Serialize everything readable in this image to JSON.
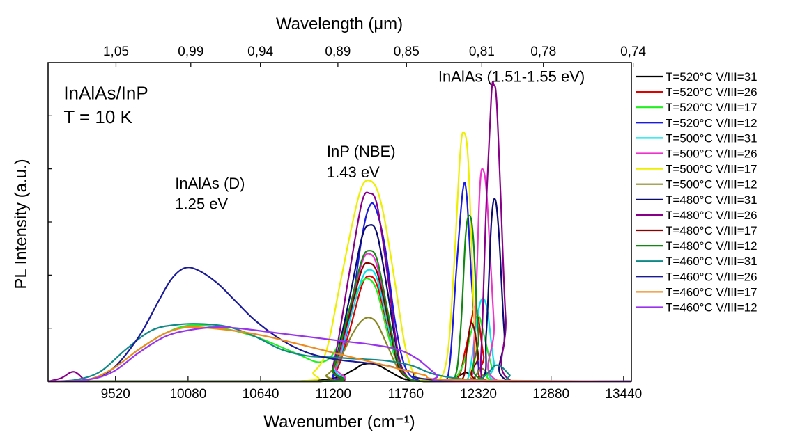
{
  "chart_data": {
    "type": "line",
    "xlabel": "Wavenumber (cm⁻¹)",
    "ylabel": "PL Intensity (a.u.)",
    "top_xlabel": "Wavelength (μm)",
    "xlim": [
      9000,
      13500
    ],
    "ylim": [
      0,
      1
    ],
    "x_ticks": [
      9520,
      10080,
      10640,
      11200,
      11760,
      12320,
      12880,
      13440
    ],
    "top_x_ticks": [
      {
        "label": "1,05",
        "wavenumber": 9524
      },
      {
        "label": "0,99",
        "wavenumber": 10101
      },
      {
        "label": "0,94",
        "wavenumber": 10638
      },
      {
        "label": "0,89",
        "wavenumber": 11236
      },
      {
        "label": "0,85",
        "wavenumber": 11765
      },
      {
        "label": "0,81",
        "wavenumber": 12346
      },
      {
        "label": "0,78",
        "wavenumber": 12821
      },
      {
        "label": "0,74",
        "wavenumber": 13514
      }
    ],
    "y_tick_count": 6,
    "y_tick_labels_shown": false,
    "grid": false,
    "legend_position": "right",
    "annotations": [
      {
        "text": "InAlAs/InP",
        "x": 9120,
        "y": 0.885,
        "size": "big"
      },
      {
        "text": "T = 10 K",
        "x": 9120,
        "y": 0.81,
        "size": "big"
      },
      {
        "text": "InAlAs (D)",
        "x": 9980,
        "y": 0.605
      },
      {
        "text": "1.25 eV",
        "x": 9980,
        "y": 0.54
      },
      {
        "text": "InP (NBE)",
        "x": 11150,
        "y": 0.705
      },
      {
        "text": "1.43 eV",
        "x": 11150,
        "y": 0.64
      },
      {
        "text": "InAlAs (1.51-1.55 eV)",
        "x": 12010,
        "y": 0.94
      }
    ],
    "series": [
      {
        "name": "T=520°C V/III=31",
        "color": "#000000",
        "x": [
          9000,
          10800,
          11200,
          11350,
          11420,
          11480,
          11550,
          11640,
          11720,
          11800,
          12050,
          12180,
          12220,
          12250,
          12280,
          12320,
          13500
        ],
        "y": [
          0.0,
          0.0,
          0.01,
          0.035,
          0.052,
          0.056,
          0.05,
          0.03,
          0.012,
          0.004,
          0.0,
          0.02,
          0.028,
          0.022,
          0.01,
          0.0,
          0.0
        ]
      },
      {
        "name": "T=520°C V/III=26",
        "color": "#e00000",
        "x": [
          9000,
          11100,
          11220,
          11320,
          11420,
          11480,
          11540,
          11620,
          11700,
          11780,
          11900,
          12140,
          12220,
          12280,
          12300,
          12320,
          12360,
          12420,
          13500
        ],
        "y": [
          0.0,
          0.0,
          0.03,
          0.15,
          0.3,
          0.33,
          0.3,
          0.17,
          0.05,
          0.01,
          0.0,
          0.0,
          0.1,
          0.22,
          0.23,
          0.2,
          0.08,
          0.0,
          0.0
        ]
      },
      {
        "name": "T=520°C V/III=17",
        "color": "#22ee22",
        "x": [
          9000,
          9300,
          9500,
          9700,
          9900,
          10080,
          10300,
          10600,
          10900,
          11100,
          11220,
          11320,
          11420,
          11480,
          11540,
          11620,
          11700,
          11780,
          11900,
          12100,
          12200,
          12260,
          12300,
          12330,
          12360,
          12420,
          12480,
          13500
        ],
        "y": [
          0.0,
          0.005,
          0.04,
          0.1,
          0.15,
          0.175,
          0.17,
          0.14,
          0.09,
          0.06,
          0.1,
          0.22,
          0.31,
          0.32,
          0.28,
          0.15,
          0.05,
          0.01,
          0.0,
          0.0,
          0.05,
          0.15,
          0.2,
          0.2,
          0.15,
          0.05,
          0.0,
          0.0
        ]
      },
      {
        "name": "T=520°C V/III=12",
        "color": "#1a1ae0",
        "x": [
          9000,
          11100,
          11200,
          11320,
          11420,
          11480,
          11530,
          11600,
          11680,
          11760,
          11880,
          12050,
          12100,
          12150,
          12200,
          12230,
          12270,
          12320,
          12380,
          13500
        ],
        "y": [
          0.0,
          0.0,
          0.02,
          0.18,
          0.45,
          0.55,
          0.54,
          0.42,
          0.18,
          0.04,
          0.0,
          0.0,
          0.06,
          0.35,
          0.6,
          0.58,
          0.3,
          0.05,
          0.0,
          0.0
        ]
      },
      {
        "name": "T=500°C V/III=31",
        "color": "#00e5ee",
        "x": [
          9000,
          11100,
          11220,
          11320,
          11420,
          11480,
          11540,
          11620,
          11700,
          11780,
          11900,
          12200,
          12260,
          12310,
          12350,
          12390,
          12440,
          12500,
          13500
        ],
        "y": [
          0.0,
          0.0,
          0.04,
          0.18,
          0.32,
          0.35,
          0.32,
          0.18,
          0.05,
          0.01,
          0.0,
          0.0,
          0.05,
          0.2,
          0.26,
          0.22,
          0.06,
          0.0,
          0.0
        ]
      },
      {
        "name": "T=500°C V/III=26",
        "color": "#ee33cc",
        "x": [
          9000,
          11100,
          11220,
          11320,
          11420,
          11480,
          11540,
          11620,
          11700,
          11780,
          11900,
          12240,
          12290,
          12330,
          12360,
          12390,
          12440,
          12480,
          13500
        ],
        "y": [
          0.0,
          0.0,
          0.05,
          0.2,
          0.37,
          0.4,
          0.36,
          0.2,
          0.06,
          0.01,
          0.0,
          0.0,
          0.15,
          0.6,
          0.66,
          0.55,
          0.18,
          0.0,
          0.0
        ]
      },
      {
        "name": "T=500°C V/III=17",
        "color": "#eeee00",
        "x": [
          9000,
          10900,
          11050,
          11150,
          11250,
          11350,
          11420,
          11480,
          11540,
          11600,
          11680,
          11760,
          11850,
          12000,
          12080,
          12130,
          12180,
          12210,
          12240,
          12270,
          12300,
          12360,
          13500
        ],
        "y": [
          0.0,
          0.0,
          0.03,
          0.1,
          0.3,
          0.5,
          0.61,
          0.63,
          0.6,
          0.5,
          0.3,
          0.1,
          0.01,
          0.0,
          0.08,
          0.35,
          0.72,
          0.78,
          0.7,
          0.4,
          0.1,
          0.0,
          0.0
        ]
      },
      {
        "name": "T=500°C V/III=12",
        "color": "#888822",
        "x": [
          9000,
          11000,
          11150,
          11250,
          11350,
          11420,
          11480,
          11540,
          11620,
          11700,
          11780,
          11900,
          12250,
          12300,
          12340,
          12380,
          12430,
          13500
        ],
        "y": [
          0.0,
          0.0,
          0.02,
          0.07,
          0.15,
          0.19,
          0.2,
          0.18,
          0.11,
          0.04,
          0.01,
          0.0,
          0.0,
          0.02,
          0.04,
          0.03,
          0.0,
          0.0
        ]
      },
      {
        "name": "T=480°C V/III=31",
        "color": "#0b0b70",
        "x": [
          9000,
          11100,
          11200,
          11320,
          11420,
          11480,
          11540,
          11620,
          11700,
          11780,
          11900,
          12330,
          12380,
          12420,
          12450,
          12480,
          12520,
          12560,
          13500
        ],
        "y": [
          0.0,
          0.0,
          0.04,
          0.25,
          0.45,
          0.49,
          0.46,
          0.28,
          0.08,
          0.01,
          0.0,
          0.0,
          0.15,
          0.5,
          0.57,
          0.45,
          0.15,
          0.0,
          0.0
        ]
      },
      {
        "name": "T=480°C V/III=26",
        "color": "#880088",
        "x": [
          9000,
          9100,
          9200,
          9300,
          9400,
          11100,
          11200,
          11320,
          11420,
          11480,
          11540,
          11620,
          11700,
          11780,
          11900,
          12300,
          12340,
          12380,
          12420,
          12440,
          12460,
          12490,
          12530,
          12580,
          13500
        ],
        "y": [
          0.0,
          0.01,
          0.03,
          0.0,
          0.0,
          0.0,
          0.05,
          0.33,
          0.56,
          0.59,
          0.55,
          0.33,
          0.09,
          0.01,
          0.0,
          0.0,
          0.08,
          0.55,
          0.9,
          0.93,
          0.88,
          0.6,
          0.2,
          0.0,
          0.0
        ]
      },
      {
        "name": "T=480°C V/III=17",
        "color": "#880000",
        "x": [
          9000,
          11100,
          11200,
          11320,
          11420,
          11480,
          11540,
          11620,
          11700,
          11780,
          11900,
          12180,
          12230,
          12260,
          12290,
          12320,
          12360,
          13500
        ],
        "y": [
          0.0,
          0.0,
          0.04,
          0.2,
          0.35,
          0.37,
          0.34,
          0.2,
          0.05,
          0.01,
          0.0,
          0.0,
          0.1,
          0.18,
          0.16,
          0.08,
          0.0,
          0.0
        ]
      },
      {
        "name": "T=480°C V/III=12",
        "color": "#118811",
        "x": [
          9000,
          11100,
          11200,
          11320,
          11420,
          11480,
          11540,
          11620,
          11700,
          11780,
          11900,
          12120,
          12180,
          12220,
          12250,
          12280,
          12320,
          12380,
          13500
        ],
        "y": [
          0.0,
          0.0,
          0.04,
          0.22,
          0.38,
          0.41,
          0.38,
          0.22,
          0.06,
          0.01,
          0.0,
          0.0,
          0.15,
          0.45,
          0.52,
          0.45,
          0.15,
          0.0,
          0.0
        ]
      },
      {
        "name": "T=460°C V/III=31",
        "color": "#118888",
        "x": [
          9000,
          9200,
          9400,
          9600,
          9800,
          10000,
          10200,
          10400,
          10600,
          10800,
          11000,
          11200,
          11400,
          11600,
          11800,
          12000,
          12300,
          12400,
          12450,
          12500,
          12560,
          12620,
          13500
        ],
        "y": [
          0.0,
          0.004,
          0.03,
          0.1,
          0.16,
          0.178,
          0.18,
          0.17,
          0.14,
          0.1,
          0.08,
          0.075,
          0.07,
          0.065,
          0.05,
          0.02,
          0.005,
          0.03,
          0.05,
          0.045,
          0.02,
          0.0,
          0.0
        ]
      },
      {
        "name": "T=460°C V/III=26",
        "color": "#1a1a99",
        "x": [
          9000,
          9300,
          9500,
          9700,
          9850,
          9950,
          10050,
          10150,
          10300,
          10450,
          10600,
          10800,
          11000,
          11200,
          11400,
          11600,
          11800,
          12000,
          13500
        ],
        "y": [
          0.0,
          0.005,
          0.04,
          0.14,
          0.25,
          0.32,
          0.355,
          0.35,
          0.31,
          0.25,
          0.19,
          0.13,
          0.09,
          0.07,
          0.06,
          0.05,
          0.03,
          0.005,
          0.0
        ]
      },
      {
        "name": "T=460°C V/III=17",
        "color": "#f08a1c",
        "x": [
          9000,
          9300,
          9500,
          9700,
          9900,
          10080,
          10300,
          10500,
          10700,
          10900,
          11100,
          11300,
          11500,
          11700,
          11900,
          12100,
          13500
        ],
        "y": [
          0.0,
          0.005,
          0.04,
          0.1,
          0.15,
          0.17,
          0.165,
          0.155,
          0.14,
          0.12,
          0.1,
          0.08,
          0.06,
          0.04,
          0.02,
          0.005,
          0.0
        ]
      },
      {
        "name": "T=460°C V/III=12",
        "color": "#9933ee",
        "x": [
          9000,
          9300,
          9500,
          9700,
          9900,
          10080,
          10300,
          10500,
          10700,
          10900,
          11100,
          11300,
          11500,
          11700,
          11850,
          12000,
          12100,
          13500
        ],
        "y": [
          0.0,
          0.005,
          0.03,
          0.09,
          0.14,
          0.16,
          0.17,
          0.165,
          0.155,
          0.145,
          0.135,
          0.125,
          0.115,
          0.1,
          0.07,
          0.02,
          0.0,
          0.0
        ]
      }
    ]
  }
}
